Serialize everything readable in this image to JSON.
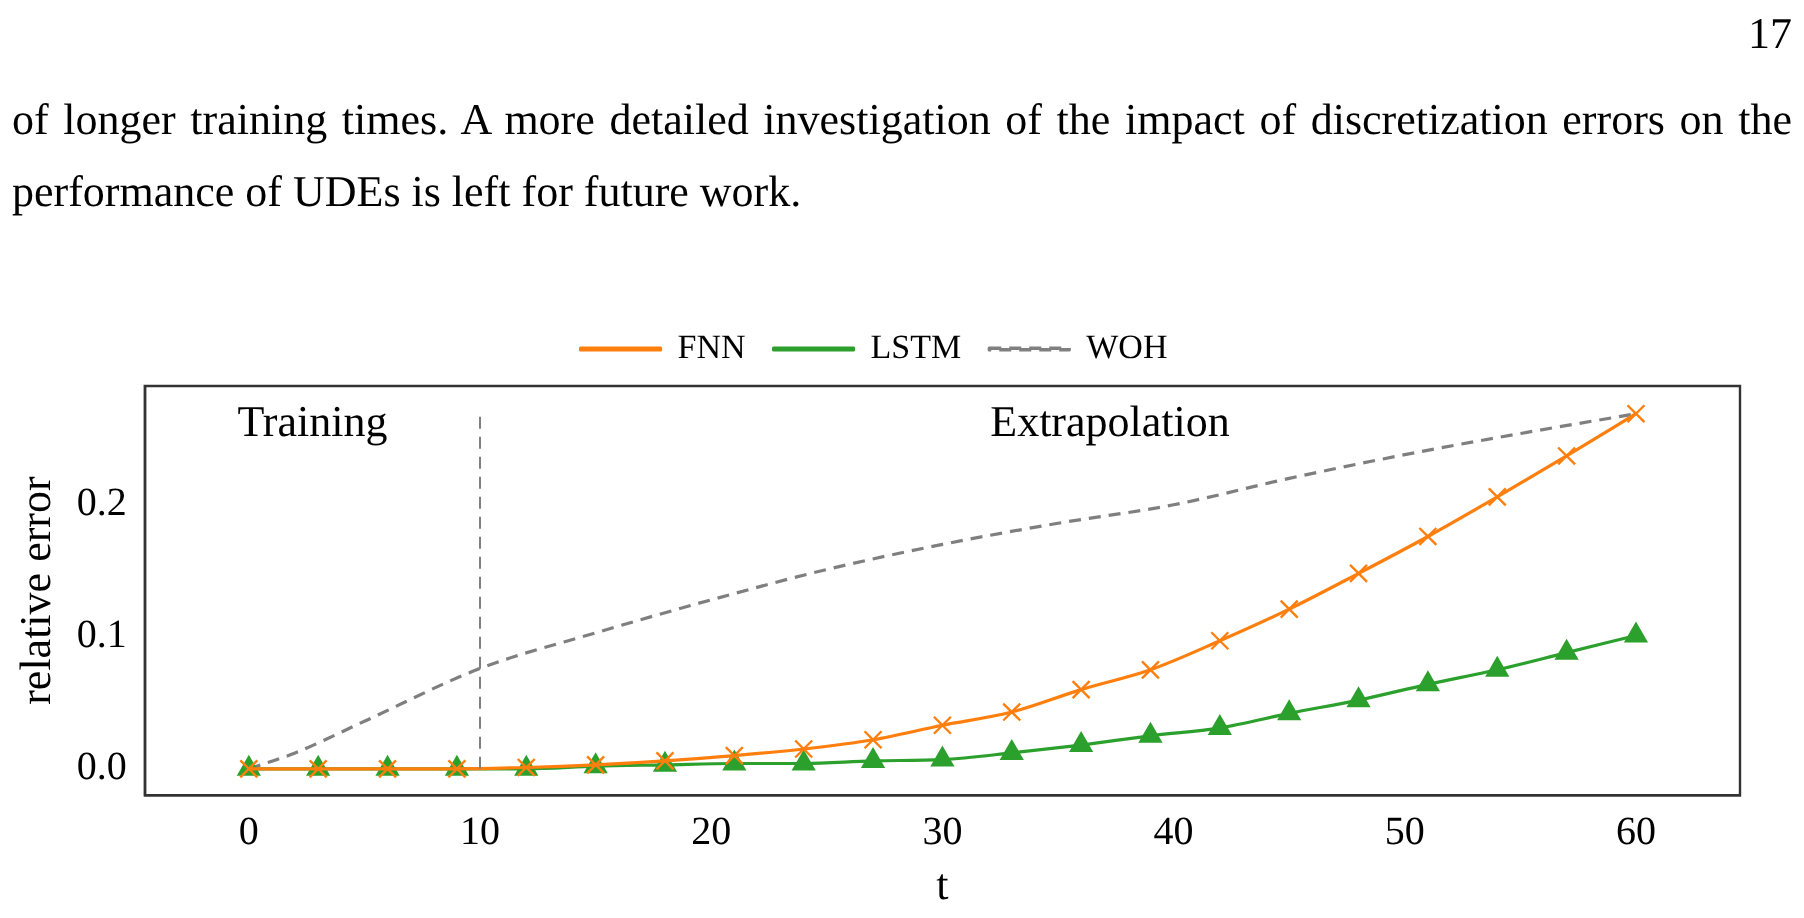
{
  "chart_data": {
    "type": "line",
    "xlabel": "t",
    "ylabel": "relative error",
    "annotations": [
      "17",
      "of longer training times. A more detailed investigation of the impact of discretization errors on the performance of UDEs is left for future work.",
      "Training",
      "Extrapolation"
    ],
    "series": [
      {
        "name": "FNN",
        "color": "#ff7f0e",
        "marker": "cross",
        "x": [
          0,
          3,
          6,
          9,
          12,
          15,
          18,
          21,
          24,
          27,
          30,
          33,
          36,
          39,
          42,
          45,
          48,
          51,
          54,
          57,
          60
        ],
        "values": [
          0,
          0,
          0,
          0,
          0.001,
          0.003,
          0.006,
          0.01,
          0.015,
          0.022,
          0.033,
          0.043,
          0.06,
          0.075,
          0.097,
          0.121,
          0.148,
          0.176,
          0.206,
          0.237,
          0.269
        ]
      },
      {
        "name": "LSTM",
        "color": "#2ca02c",
        "marker": "triangle",
        "x": [
          0,
          3,
          6,
          9,
          12,
          15,
          18,
          21,
          24,
          27,
          30,
          33,
          36,
          39,
          42,
          45,
          48,
          51,
          54,
          57,
          60
        ],
        "values": [
          0,
          0,
          0,
          0,
          0,
          0.002,
          0.003,
          0.004,
          0.004,
          0.006,
          0.007,
          0.012,
          0.018,
          0.025,
          0.031,
          0.042,
          0.052,
          0.064,
          0.075,
          0.088,
          0.101
        ]
      },
      {
        "name": "WOH",
        "color": "#7f7f7f",
        "marker": "none",
        "line_style": "dashed",
        "x": [
          0,
          2,
          5,
          10,
          15,
          20,
          25,
          30,
          35,
          40,
          45,
          50,
          55,
          60
        ],
        "values": [
          0,
          0.012,
          0.036,
          0.076,
          0.103,
          0.128,
          0.151,
          0.17,
          0.186,
          0.2,
          0.22,
          0.238,
          0.254,
          0.269
        ]
      }
    ],
    "ref_lines": [
      {
        "axis": "x",
        "value": 10,
        "color": "#7f7f7f",
        "line_style": "dashed"
      }
    ],
    "xlim": [
      -4.5,
      64.5
    ],
    "xticks": [
      0,
      10,
      20,
      30,
      40,
      50,
      60
    ],
    "ylim": [
      -0.02,
      0.29
    ],
    "yticks": [
      {
        "value": 0,
        "label": "0.0"
      },
      {
        "value": 0.1,
        "label": "0.1"
      },
      {
        "value": 0.2,
        "label": "0.2"
      }
    ],
    "grid": false,
    "legend": "top"
  }
}
